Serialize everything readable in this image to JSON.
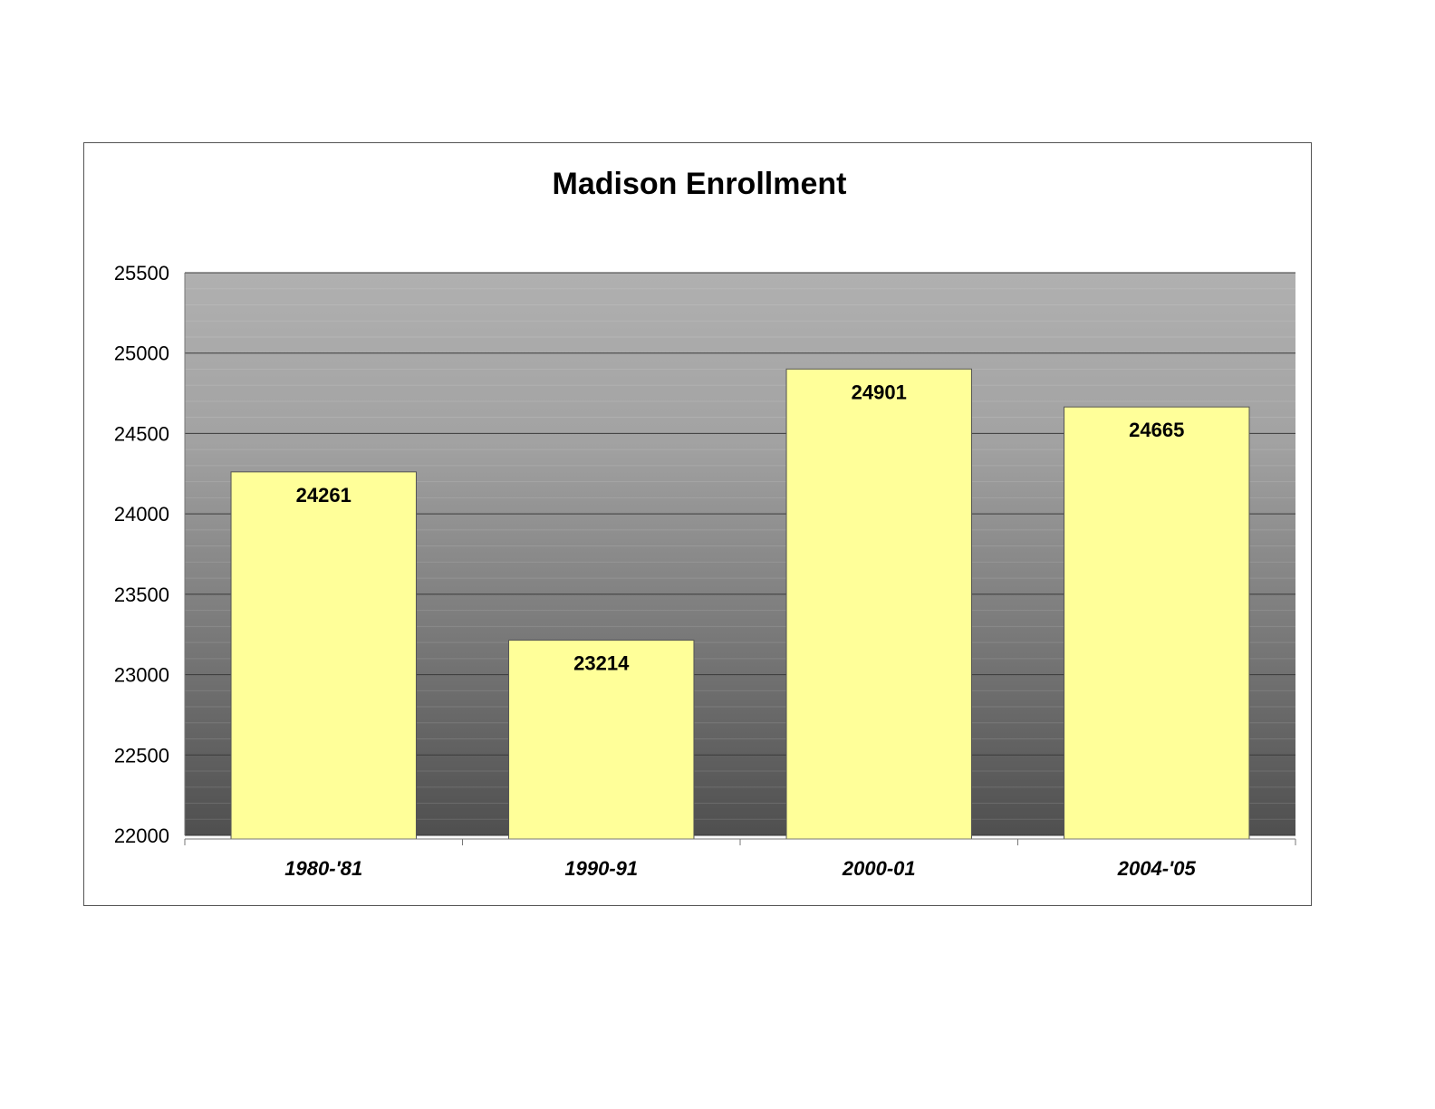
{
  "chart_data": {
    "type": "bar",
    "title": "Madison Enrollment",
    "xlabel": "",
    "ylabel": "",
    "categories": [
      "1980-'81",
      "1990-91",
      "2000-01",
      "2004-'05"
    ],
    "values": [
      24261,
      23214,
      24901,
      24665
    ],
    "data_labels": [
      "24261",
      "23214",
      "24901",
      "24665"
    ],
    "ylim": [
      22000,
      25500
    ],
    "yticks": [
      22000,
      22500,
      23000,
      23500,
      24000,
      24500,
      25000,
      25500
    ],
    "ytick_labels": [
      "22000",
      "22500",
      "23000",
      "23500",
      "24000",
      "24500",
      "25000",
      "25500"
    ],
    "grid": true,
    "legend": "none",
    "colors": {
      "bar_fill": "#FFFF99",
      "bar_stroke": "#555555",
      "plot_bg_top": "#B0B0B0",
      "plot_bg_bottom": "#4F4F4F",
      "gridline": "#3A3A3A"
    }
  }
}
